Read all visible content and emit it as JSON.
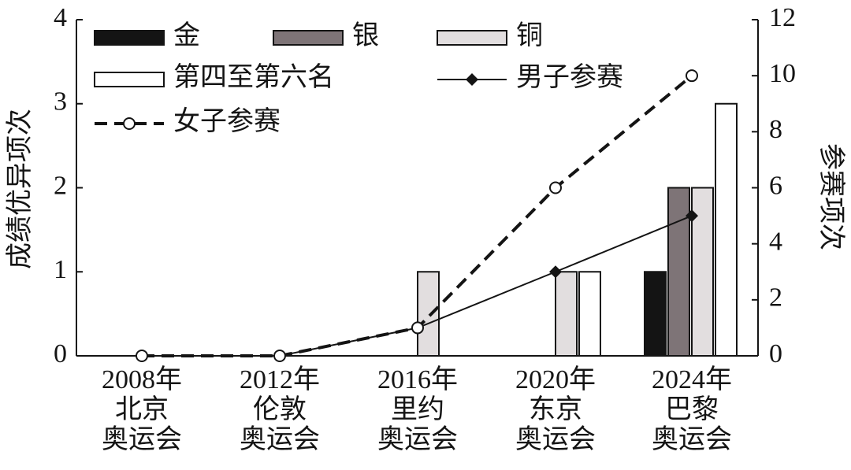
{
  "chart_data": {
    "type": "bar",
    "categories": [
      [
        "2008年",
        "北京",
        "奥运会"
      ],
      [
        "2012年",
        "伦敦",
        "奥运会"
      ],
      [
        "2016年",
        "里约",
        "奥运会"
      ],
      [
        "2020年",
        "东京",
        "奥运会"
      ],
      [
        "2024年",
        "巴黎",
        "奥运会"
      ]
    ],
    "ylabel": "成绩优异项次",
    "y2label": "参赛项次",
    "ylim": [
      0,
      4
    ],
    "yticks": [
      0,
      1,
      2,
      3,
      4
    ],
    "y2lim": [
      0,
      12
    ],
    "y2ticks": [
      0,
      2,
      4,
      6,
      8,
      10,
      12
    ],
    "series": [
      {
        "name": "金",
        "type": "bar",
        "color": "#141414",
        "values": [
          0,
          0,
          0,
          0,
          1
        ]
      },
      {
        "name": "银",
        "type": "bar",
        "color": "#7e7477",
        "values": [
          0,
          0,
          0,
          0,
          2
        ]
      },
      {
        "name": "铜",
        "type": "bar",
        "color": "#e2dedf",
        "values": [
          0,
          0,
          1,
          1,
          2
        ]
      },
      {
        "name": "第四至第六名",
        "type": "bar",
        "color": "#ffffff",
        "values": [
          0,
          0,
          0,
          1,
          3
        ]
      },
      {
        "name": "男子参赛",
        "type": "line",
        "axis": "y2",
        "color": "#141414",
        "marker": "diamond",
        "values": [
          0,
          0,
          1,
          3,
          5
        ]
      },
      {
        "name": "女子参赛",
        "type": "line",
        "axis": "y2",
        "color": "#141414",
        "dashed": true,
        "marker": "circle",
        "values": [
          0,
          0,
          1,
          6,
          10
        ]
      }
    ]
  }
}
